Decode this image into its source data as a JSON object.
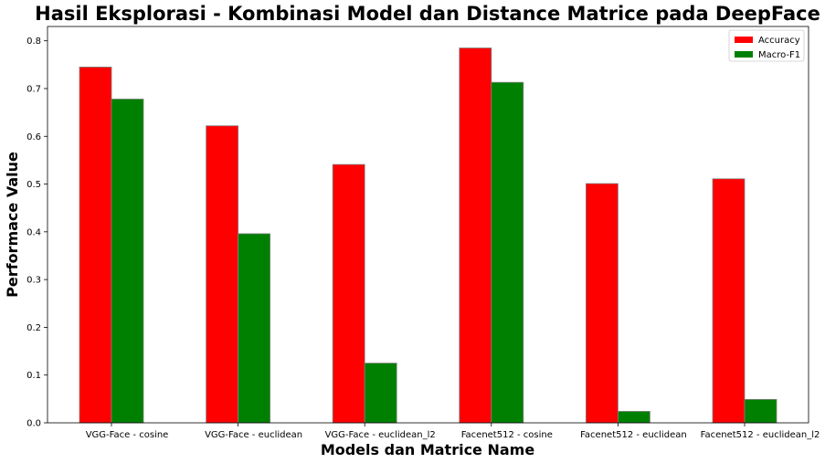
{
  "chart_data": {
    "type": "bar",
    "title": "Hasil Eksplorasi - Kombinasi Model dan Distance Matrice pada DeepFace",
    "xlabel": "Models dan Matrice Name",
    "ylabel": "Performace Value",
    "categories": [
      "VGG-Face - cosine",
      "VGG-Face - euclidean",
      "VGG-Face - euclidean_l2",
      "Facenet512 - cosine",
      "Facenet512 - euclidean",
      "Facenet512 - euclidean_l2"
    ],
    "series": [
      {
        "name": "Accuracy",
        "color": "#ff0000",
        "values": [
          0.745,
          0.622,
          0.541,
          0.785,
          0.501,
          0.511
        ]
      },
      {
        "name": "Macro-F1",
        "color": "#008000",
        "values": [
          0.678,
          0.396,
          0.125,
          0.713,
          0.024,
          0.049
        ]
      }
    ],
    "ylim": [
      0,
      0.83
    ],
    "yticks": [
      0.0,
      0.1,
      0.2,
      0.3,
      0.4,
      0.5,
      0.6,
      0.7,
      0.8
    ],
    "ytick_labels": [
      "0.0",
      "0.1",
      "0.2",
      "0.3",
      "0.4",
      "0.5",
      "0.6",
      "0.7",
      "0.8"
    ],
    "grid": false,
    "legend_position": "top-right"
  }
}
